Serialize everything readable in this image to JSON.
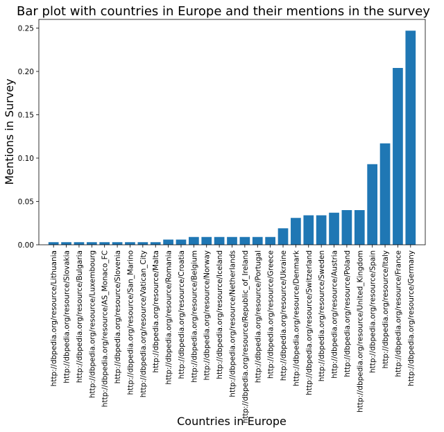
{
  "chart_data": {
    "type": "bar",
    "title": "Bar plot with countries in Europe and their mentions in the survey",
    "xlabel": "Countries in Europe",
    "ylabel": "Mentions in Survey",
    "ylim": [
      0,
      0.26
    ],
    "yticks": [
      "0.00",
      "0.05",
      "0.10",
      "0.15",
      "0.20",
      "0.25"
    ],
    "grid": false,
    "bar_color": "#1f77b4",
    "categories": [
      "http://dbpedia.org/resource/Lithuania",
      "http://dbpedia.org/resource/Slovakia",
      "http://dbpedia.org/resource/Bulgaria",
      "http://dbpedia.org/resource/Luxembourg",
      "http://dbpedia.org/resource/AS_Monaco_FC",
      "http://dbpedia.org/resource/Slovenia",
      "http://dbpedia.org/resource/San_Marino",
      "http://dbpedia.org/resource/Vatican_City",
      "http://dbpedia.org/resource/Malta",
      "http://dbpedia.org/resource/Romania",
      "http://dbpedia.org/resource/Croatia",
      "http://dbpedia.org/resource/Belgium",
      "http://dbpedia.org/resource/Norway",
      "http://dbpedia.org/resource/Iceland",
      "http://dbpedia.org/resource/Netherlands",
      "http://dbpedia.org/resource/Republic_of_Ireland",
      "http://dbpedia.org/resource/Portugal",
      "http://dbpedia.org/resource/Greece",
      "http://dbpedia.org/resource/Ukraine",
      "http://dbpedia.org/resource/Denmark",
      "http://dbpedia.org/resource/Switzerland",
      "http://dbpedia.org/resource/Sweden",
      "http://dbpedia.org/resource/Austria",
      "http://dbpedia.org/resource/Poland",
      "http://dbpedia.org/resource/United_Kingdom",
      "http://dbpedia.org/resource/Spain",
      "http://dbpedia.org/resource/Italy",
      "http://dbpedia.org/resource/France",
      "http://dbpedia.org/resource/Germany"
    ],
    "values": [
      0.003,
      0.003,
      0.003,
      0.003,
      0.003,
      0.003,
      0.003,
      0.003,
      0.003,
      0.006,
      0.006,
      0.009,
      0.009,
      0.009,
      0.009,
      0.009,
      0.009,
      0.009,
      0.019,
      0.031,
      0.034,
      0.034,
      0.037,
      0.04,
      0.04,
      0.093,
      0.117,
      0.204,
      0.247
    ]
  }
}
